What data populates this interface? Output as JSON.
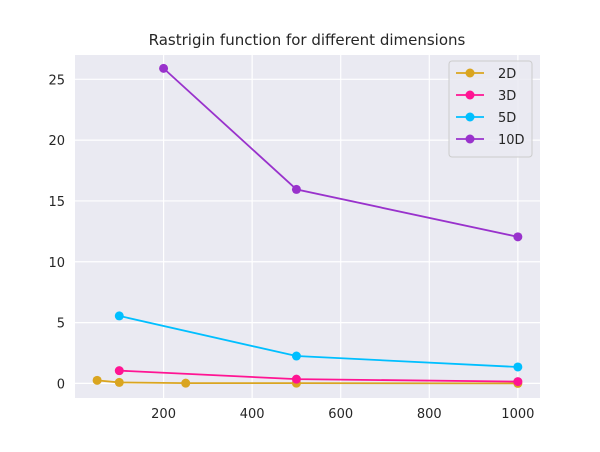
{
  "chart_data": {
    "type": "line",
    "title": "Rastrigin function for different dimensions",
    "xlabel": "",
    "ylabel": "",
    "xlim": [
      0,
      1050
    ],
    "ylim": [
      -1.2,
      27
    ],
    "x_ticks": [
      200,
      400,
      600,
      800,
      1000
    ],
    "y_ticks": [
      0,
      5,
      10,
      15,
      20,
      25
    ],
    "grid": true,
    "legend_position": "top-right",
    "series": [
      {
        "name": "2D",
        "color": "#DAA520",
        "x": [
          50,
          100,
          250,
          500,
          1000
        ],
        "y": [
          0.25,
          0.08,
          0.02,
          0.02,
          0.0
        ]
      },
      {
        "name": "3D",
        "color": "#FF1493",
        "x": [
          100,
          500,
          1000
        ],
        "y": [
          1.05,
          0.35,
          0.15
        ]
      },
      {
        "name": "5D",
        "color": "#00BFFF",
        "x": [
          100,
          500,
          1000
        ],
        "y": [
          5.55,
          2.25,
          1.35
        ]
      },
      {
        "name": "10D",
        "color": "#9932CC",
        "x": [
          200,
          500,
          1000
        ],
        "y": [
          25.9,
          15.95,
          12.05
        ]
      }
    ]
  }
}
